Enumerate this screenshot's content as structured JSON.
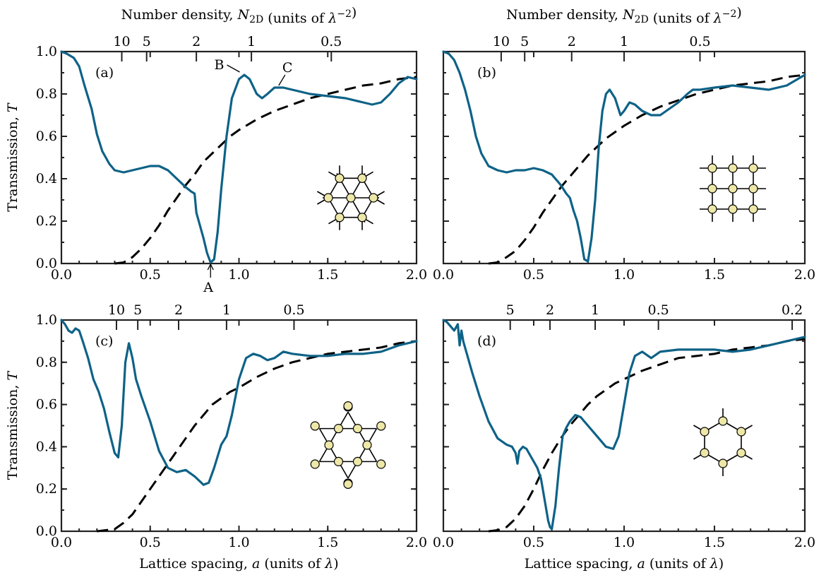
{
  "chart_data": [
    {
      "panel": "(a)",
      "type": "line",
      "lattice": "triangular",
      "xlim": [
        0,
        2
      ],
      "ylim": [
        0,
        1
      ],
      "xticks": [
        "0.0",
        "0.5",
        "1.0",
        "1.5",
        "2.0"
      ],
      "yticks": [
        "0.0",
        "0.2",
        "0.4",
        "0.6",
        "0.8",
        "1.0"
      ],
      "ylabel": "Transmission, T",
      "xlabel": "",
      "top_axis_label": "Number density, N2D (units of λ−2)",
      "top_ticks": [
        {
          "label": "10",
          "x": 0.34
        },
        {
          "label": "5",
          "x": 0.48
        },
        {
          "label": "2",
          "x": 0.76
        },
        {
          "label": "1",
          "x": 1.07
        },
        {
          "label": "0.5",
          "x": 1.52
        }
      ],
      "annotations": [
        {
          "text": "A",
          "x": 0.84,
          "y": 0.0
        },
        {
          "text": "B",
          "x": 1.02,
          "y": 0.89
        },
        {
          "text": "C",
          "x": 1.22,
          "y": 0.83
        }
      ],
      "series": [
        {
          "role": "transmission",
          "x": [
            0.0,
            0.03,
            0.07,
            0.1,
            0.13,
            0.17,
            0.2,
            0.23,
            0.27,
            0.3,
            0.35,
            0.4,
            0.45,
            0.5,
            0.55,
            0.6,
            0.65,
            0.7,
            0.73,
            0.75,
            0.76,
            0.78,
            0.8,
            0.82,
            0.84,
            0.86,
            0.88,
            0.9,
            0.93,
            0.96,
            1.0,
            1.03,
            1.06,
            1.1,
            1.13,
            1.16,
            1.2,
            1.25,
            1.3,
            1.4,
            1.5,
            1.6,
            1.7,
            1.75,
            1.8,
            1.85,
            1.9,
            1.95,
            2.0
          ],
          "y": [
            1.0,
            0.99,
            0.97,
            0.93,
            0.84,
            0.73,
            0.61,
            0.53,
            0.47,
            0.44,
            0.43,
            0.44,
            0.45,
            0.46,
            0.46,
            0.44,
            0.4,
            0.36,
            0.34,
            0.33,
            0.24,
            0.18,
            0.12,
            0.05,
            0.005,
            0.02,
            0.15,
            0.35,
            0.6,
            0.78,
            0.87,
            0.89,
            0.87,
            0.8,
            0.78,
            0.8,
            0.83,
            0.83,
            0.82,
            0.8,
            0.79,
            0.78,
            0.76,
            0.75,
            0.76,
            0.8,
            0.85,
            0.88,
            0.87
          ]
        },
        {
          "role": "reference",
          "x": [
            0.3,
            0.35,
            0.4,
            0.45,
            0.5,
            0.55,
            0.6,
            0.65,
            0.7,
            0.75,
            0.8,
            0.85,
            0.9,
            0.95,
            1.0,
            1.1,
            1.2,
            1.3,
            1.4,
            1.5,
            1.6,
            1.7,
            1.8,
            1.9,
            2.0
          ],
          "y": [
            0.0,
            0.005,
            0.03,
            0.07,
            0.12,
            0.18,
            0.25,
            0.31,
            0.37,
            0.42,
            0.48,
            0.52,
            0.56,
            0.6,
            0.63,
            0.68,
            0.72,
            0.75,
            0.78,
            0.8,
            0.82,
            0.84,
            0.85,
            0.87,
            0.88
          ]
        }
      ]
    },
    {
      "panel": "(b)",
      "type": "line",
      "lattice": "square",
      "xlim": [
        0,
        2
      ],
      "ylim": [
        0,
        1
      ],
      "xticks": [
        "0.0",
        "0.5",
        "1.0",
        "1.5",
        "2.0"
      ],
      "yticks": [
        "0.0",
        "0.2",
        "0.4",
        "0.6",
        "0.8",
        "1.0"
      ],
      "ylabel": "",
      "xlabel": "",
      "top_axis_label": "Number density, N2D (units of λ−2)",
      "top_ticks": [
        {
          "label": "10",
          "x": 0.32
        },
        {
          "label": "5",
          "x": 0.45
        },
        {
          "label": "2",
          "x": 0.71
        },
        {
          "label": "1",
          "x": 1.0
        },
        {
          "label": "0.5",
          "x": 1.42
        }
      ],
      "annotations": [],
      "series": [
        {
          "role": "transmission",
          "x": [
            0.0,
            0.03,
            0.06,
            0.09,
            0.12,
            0.15,
            0.18,
            0.21,
            0.25,
            0.3,
            0.35,
            0.4,
            0.45,
            0.5,
            0.55,
            0.6,
            0.65,
            0.68,
            0.7,
            0.72,
            0.74,
            0.76,
            0.78,
            0.8,
            0.82,
            0.84,
            0.86,
            0.88,
            0.9,
            0.92,
            0.95,
            0.98,
            1.0,
            1.03,
            1.06,
            1.1,
            1.15,
            1.2,
            1.25,
            1.3,
            1.35,
            1.38,
            1.42,
            1.5,
            1.6,
            1.7,
            1.8,
            1.9,
            2.0
          ],
          "y": [
            1.0,
            0.99,
            0.96,
            0.9,
            0.82,
            0.72,
            0.6,
            0.52,
            0.46,
            0.44,
            0.43,
            0.44,
            0.44,
            0.45,
            0.44,
            0.42,
            0.37,
            0.33,
            0.31,
            0.25,
            0.2,
            0.12,
            0.02,
            0.01,
            0.12,
            0.3,
            0.55,
            0.72,
            0.8,
            0.82,
            0.78,
            0.7,
            0.72,
            0.76,
            0.75,
            0.72,
            0.7,
            0.7,
            0.73,
            0.76,
            0.8,
            0.82,
            0.82,
            0.83,
            0.84,
            0.83,
            0.82,
            0.84,
            0.89
          ]
        },
        {
          "role": "reference",
          "x": [
            0.25,
            0.3,
            0.35,
            0.4,
            0.45,
            0.5,
            0.55,
            0.6,
            0.65,
            0.7,
            0.75,
            0.8,
            0.85,
            0.9,
            0.95,
            1.0,
            1.1,
            1.2,
            1.3,
            1.4,
            1.5,
            1.6,
            1.7,
            1.8,
            1.9,
            2.0
          ],
          "y": [
            0.0,
            0.005,
            0.03,
            0.06,
            0.11,
            0.17,
            0.24,
            0.3,
            0.36,
            0.41,
            0.46,
            0.51,
            0.55,
            0.59,
            0.62,
            0.65,
            0.7,
            0.74,
            0.77,
            0.8,
            0.82,
            0.84,
            0.85,
            0.86,
            0.88,
            0.89
          ]
        }
      ]
    },
    {
      "panel": "(c)",
      "type": "line",
      "lattice": "kagome",
      "xlim": [
        0,
        2
      ],
      "ylim": [
        0,
        1
      ],
      "xticks": [
        "0.0",
        "0.5",
        "1.0",
        "1.5",
        "2.0"
      ],
      "yticks": [
        "0.0",
        "0.2",
        "0.4",
        "0.6",
        "0.8",
        "1.0"
      ],
      "ylabel": "Transmission, T",
      "xlabel": "Lattice spacing, a (units of λ)",
      "top_axis_label": "",
      "top_ticks": [
        {
          "label": "10",
          "x": 0.31
        },
        {
          "label": "5",
          "x": 0.43
        },
        {
          "label": "2",
          "x": 0.66
        },
        {
          "label": "1",
          "x": 0.93
        },
        {
          "label": "0.5",
          "x": 1.31
        }
      ],
      "annotations": [],
      "series": [
        {
          "role": "transmission",
          "x": [
            0.0,
            0.02,
            0.04,
            0.06,
            0.08,
            0.1,
            0.12,
            0.15,
            0.18,
            0.21,
            0.24,
            0.27,
            0.3,
            0.32,
            0.34,
            0.36,
            0.38,
            0.4,
            0.42,
            0.45,
            0.5,
            0.55,
            0.6,
            0.65,
            0.7,
            0.75,
            0.8,
            0.83,
            0.86,
            0.9,
            0.93,
            0.96,
            1.0,
            1.04,
            1.08,
            1.12,
            1.16,
            1.2,
            1.25,
            1.3,
            1.4,
            1.5,
            1.6,
            1.7,
            1.8,
            1.9,
            2.0
          ],
          "y": [
            1.0,
            0.98,
            0.95,
            0.94,
            0.96,
            0.95,
            0.9,
            0.82,
            0.72,
            0.66,
            0.58,
            0.47,
            0.37,
            0.35,
            0.5,
            0.8,
            0.89,
            0.82,
            0.72,
            0.64,
            0.52,
            0.38,
            0.3,
            0.28,
            0.29,
            0.26,
            0.22,
            0.23,
            0.3,
            0.41,
            0.45,
            0.55,
            0.72,
            0.82,
            0.84,
            0.83,
            0.81,
            0.82,
            0.85,
            0.84,
            0.83,
            0.83,
            0.84,
            0.84,
            0.85,
            0.88,
            0.9
          ]
        },
        {
          "role": "reference",
          "x": [
            0.2,
            0.25,
            0.3,
            0.35,
            0.4,
            0.45,
            0.5,
            0.55,
            0.6,
            0.65,
            0.7,
            0.75,
            0.8,
            0.85,
            0.9,
            0.95,
            1.0,
            1.1,
            1.2,
            1.3,
            1.4,
            1.5,
            1.6,
            1.7,
            1.8,
            1.9,
            2.0
          ],
          "y": [
            0.0,
            0.005,
            0.01,
            0.04,
            0.08,
            0.14,
            0.2,
            0.26,
            0.32,
            0.38,
            0.44,
            0.5,
            0.55,
            0.6,
            0.63,
            0.66,
            0.68,
            0.73,
            0.77,
            0.8,
            0.82,
            0.84,
            0.85,
            0.86,
            0.87,
            0.89,
            0.9
          ]
        }
      ]
    },
    {
      "panel": "(d)",
      "type": "line",
      "lattice": "honeycomb",
      "xlim": [
        0,
        2
      ],
      "ylim": [
        0,
        1
      ],
      "xticks": [
        "0.0",
        "0.5",
        "1.0",
        "1.5",
        "2.0"
      ],
      "yticks": [
        "0.0",
        "0.2",
        "0.4",
        "0.6",
        "0.8",
        "1.0"
      ],
      "ylabel": "",
      "xlabel": "Lattice spacing, a (units of λ)",
      "top_axis_label": "",
      "top_ticks": [
        {
          "label": "5",
          "x": 0.37
        },
        {
          "label": "2",
          "x": 0.59
        },
        {
          "label": "1",
          "x": 0.84
        },
        {
          "label": "0.5",
          "x": 1.19
        },
        {
          "label": "0.2",
          "x": 1.93
        }
      ],
      "annotations": [],
      "series": [
        {
          "role": "transmission",
          "x": [
            0.0,
            0.02,
            0.04,
            0.06,
            0.08,
            0.09,
            0.1,
            0.11,
            0.13,
            0.16,
            0.2,
            0.25,
            0.3,
            0.35,
            0.38,
            0.4,
            0.41,
            0.42,
            0.44,
            0.46,
            0.48,
            0.5,
            0.52,
            0.54,
            0.56,
            0.58,
            0.59,
            0.6,
            0.62,
            0.64,
            0.66,
            0.68,
            0.7,
            0.73,
            0.76,
            0.8,
            0.85,
            0.9,
            0.94,
            0.97,
            1.0,
            1.03,
            1.06,
            1.1,
            1.15,
            1.2,
            1.3,
            1.4,
            1.5,
            1.6,
            1.7,
            1.8,
            1.9,
            2.0
          ],
          "y": [
            1.0,
            0.99,
            0.97,
            0.95,
            0.98,
            0.88,
            0.95,
            0.9,
            0.84,
            0.75,
            0.64,
            0.52,
            0.44,
            0.41,
            0.4,
            0.37,
            0.32,
            0.38,
            0.4,
            0.39,
            0.36,
            0.33,
            0.3,
            0.25,
            0.15,
            0.05,
            0.02,
            0.01,
            0.12,
            0.3,
            0.45,
            0.49,
            0.52,
            0.55,
            0.54,
            0.5,
            0.45,
            0.4,
            0.39,
            0.45,
            0.6,
            0.75,
            0.83,
            0.85,
            0.82,
            0.85,
            0.86,
            0.86,
            0.86,
            0.85,
            0.86,
            0.88,
            0.9,
            0.92
          ]
        },
        {
          "role": "reference",
          "x": [
            0.25,
            0.3,
            0.35,
            0.4,
            0.45,
            0.5,
            0.55,
            0.6,
            0.65,
            0.7,
            0.75,
            0.8,
            0.85,
            0.9,
            0.95,
            1.0,
            1.1,
            1.2,
            1.3,
            1.4,
            1.5,
            1.6,
            1.7,
            1.8,
            1.9,
            2.0
          ],
          "y": [
            0.0,
            0.005,
            0.02,
            0.06,
            0.12,
            0.2,
            0.29,
            0.37,
            0.44,
            0.5,
            0.55,
            0.6,
            0.64,
            0.67,
            0.7,
            0.72,
            0.76,
            0.79,
            0.82,
            0.83,
            0.84,
            0.86,
            0.87,
            0.88,
            0.9,
            0.91
          ]
        }
      ]
    }
  ]
}
